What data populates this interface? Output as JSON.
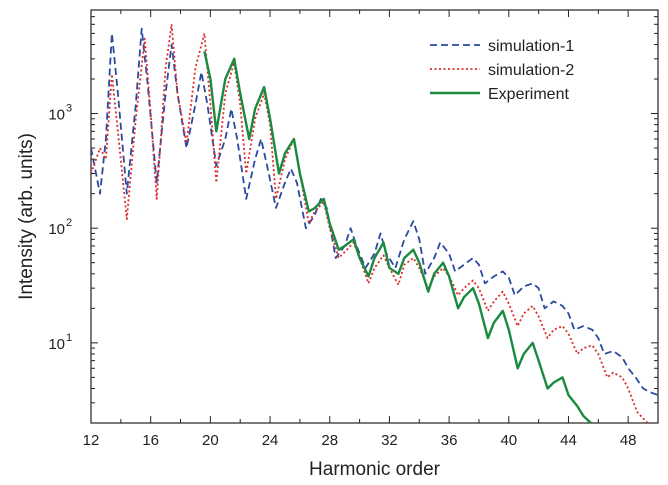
{
  "chart_data": {
    "type": "line",
    "title": "",
    "xlabel": "Harmonic order",
    "ylabel": "Intensity (arb. units)",
    "xlim": [
      12,
      50
    ],
    "ylim": [
      2,
      8000
    ],
    "yscale": "log",
    "grid": false,
    "legend_position": "top-right",
    "x_ticks": [
      12,
      16,
      20,
      24,
      28,
      32,
      36,
      40,
      44,
      48
    ],
    "y_ticks": [
      {
        "value": 10,
        "label": "10",
        "exp": "1"
      },
      {
        "value": 100,
        "label": "10",
        "exp": "2"
      },
      {
        "value": 1000,
        "label": "10",
        "exp": "3"
      }
    ],
    "series": [
      {
        "name": "simulation-1",
        "color": "#2a4aa0",
        "style": "dashed",
        "points": [
          [
            12,
            500
          ],
          [
            12.6,
            200
          ],
          [
            13.0,
            600
          ],
          [
            13.4,
            5000
          ],
          [
            13.8,
            1500
          ],
          [
            14.4,
            200
          ],
          [
            15.0,
            1200
          ],
          [
            15.4,
            5500
          ],
          [
            15.8,
            1800
          ],
          [
            16.4,
            250
          ],
          [
            17.0,
            1500
          ],
          [
            17.4,
            4000
          ],
          [
            17.8,
            1500
          ],
          [
            18.4,
            500
          ],
          [
            19.0,
            1200
          ],
          [
            19.4,
            2300
          ],
          [
            19.8,
            1200
          ],
          [
            20.4,
            350
          ],
          [
            21.0,
            600
          ],
          [
            21.4,
            1100
          ],
          [
            21.8,
            600
          ],
          [
            22.4,
            180
          ],
          [
            23.0,
            400
          ],
          [
            23.4,
            600
          ],
          [
            23.8,
            350
          ],
          [
            24.4,
            150
          ],
          [
            25.0,
            250
          ],
          [
            25.4,
            330
          ],
          [
            25.8,
            250
          ],
          [
            26.4,
            100
          ],
          [
            27.0,
            130
          ],
          [
            27.4,
            180
          ],
          [
            27.8,
            150
          ],
          [
            28.4,
            55
          ],
          [
            29.0,
            70
          ],
          [
            29.4,
            100
          ],
          [
            29.8,
            70
          ],
          [
            30.4,
            45
          ],
          [
            31.0,
            60
          ],
          [
            31.4,
            90
          ],
          [
            31.8,
            60
          ],
          [
            32.4,
            45
          ],
          [
            33.0,
            80
          ],
          [
            33.6,
            115
          ],
          [
            34.0,
            80
          ],
          [
            34.4,
            40
          ],
          [
            35.0,
            55
          ],
          [
            35.4,
            75
          ],
          [
            36.0,
            60
          ],
          [
            36.4,
            42
          ],
          [
            37.0,
            48
          ],
          [
            37.6,
            55
          ],
          [
            38.0,
            48
          ],
          [
            38.4,
            33
          ],
          [
            39.0,
            38
          ],
          [
            39.6,
            42
          ],
          [
            40.0,
            37
          ],
          [
            40.4,
            26
          ],
          [
            41.0,
            31
          ],
          [
            41.6,
            33
          ],
          [
            42.0,
            30
          ],
          [
            42.4,
            20
          ],
          [
            43.0,
            23
          ],
          [
            43.6,
            21
          ],
          [
            44.0,
            18
          ],
          [
            44.4,
            13
          ],
          [
            45.0,
            14
          ],
          [
            45.6,
            13
          ],
          [
            46.0,
            11
          ],
          [
            46.4,
            8
          ],
          [
            47.0,
            8.5
          ],
          [
            47.6,
            7.5
          ],
          [
            48.0,
            6
          ],
          [
            48.5,
            5
          ],
          [
            49.0,
            4
          ],
          [
            49.5,
            3.7
          ],
          [
            50,
            3.5
          ]
        ]
      },
      {
        "name": "simulation-2",
        "color": "#dd2a2a",
        "style": "dotted",
        "points": [
          [
            12,
            300
          ],
          [
            12.6,
            500
          ],
          [
            13.0,
            400
          ],
          [
            13.4,
            2200
          ],
          [
            13.8,
            700
          ],
          [
            14.4,
            120
          ],
          [
            15.0,
            900
          ],
          [
            15.6,
            4500
          ],
          [
            16.0,
            1000
          ],
          [
            16.4,
            180
          ],
          [
            17.0,
            2500
          ],
          [
            17.4,
            6000
          ],
          [
            17.8,
            1500
          ],
          [
            18.4,
            550
          ],
          [
            19.0,
            2500
          ],
          [
            19.6,
            5000
          ],
          [
            20.0,
            1200
          ],
          [
            20.4,
            250
          ],
          [
            21.0,
            1500
          ],
          [
            21.6,
            2800
          ],
          [
            22.0,
            1200
          ],
          [
            22.4,
            300
          ],
          [
            23.0,
            900
          ],
          [
            23.6,
            1500
          ],
          [
            24.0,
            800
          ],
          [
            24.4,
            180
          ],
          [
            25.0,
            400
          ],
          [
            25.6,
            600
          ],
          [
            26.0,
            300
          ],
          [
            26.6,
            110
          ],
          [
            27.0,
            140
          ],
          [
            27.6,
            170
          ],
          [
            28.0,
            100
          ],
          [
            28.6,
            55
          ],
          [
            29.0,
            62
          ],
          [
            29.6,
            75
          ],
          [
            30.0,
            55
          ],
          [
            30.6,
            33
          ],
          [
            31.0,
            45
          ],
          [
            31.6,
            58
          ],
          [
            32.0,
            45
          ],
          [
            32.6,
            32
          ],
          [
            33.0,
            48
          ],
          [
            33.6,
            55
          ],
          [
            34.0,
            45
          ],
          [
            34.6,
            30
          ],
          [
            35.0,
            38
          ],
          [
            35.6,
            45
          ],
          [
            36.0,
            38
          ],
          [
            36.6,
            26
          ],
          [
            37.0,
            30
          ],
          [
            37.6,
            35
          ],
          [
            38.0,
            30
          ],
          [
            38.6,
            19
          ],
          [
            39.0,
            23
          ],
          [
            39.6,
            28
          ],
          [
            40.0,
            22
          ],
          [
            40.6,
            14
          ],
          [
            41.0,
            18
          ],
          [
            41.6,
            21
          ],
          [
            42.0,
            17
          ],
          [
            42.6,
            11
          ],
          [
            43.0,
            13
          ],
          [
            43.6,
            14
          ],
          [
            44.0,
            12
          ],
          [
            44.6,
            8
          ],
          [
            45.0,
            9
          ],
          [
            45.6,
            9.5
          ],
          [
            46.0,
            8
          ],
          [
            46.6,
            5
          ],
          [
            47.0,
            5.5
          ],
          [
            47.6,
            5
          ],
          [
            48.0,
            4
          ],
          [
            48.6,
            2.5
          ],
          [
            49.0,
            2.2
          ],
          [
            49.3,
            2
          ]
        ]
      },
      {
        "name": "Experiment",
        "color": "#1a8a40",
        "style": "solid",
        "points": [
          [
            19.6,
            3500
          ],
          [
            20.0,
            2000
          ],
          [
            20.4,
            700
          ],
          [
            21.0,
            2000
          ],
          [
            21.6,
            3000
          ],
          [
            22.0,
            1500
          ],
          [
            22.6,
            600
          ],
          [
            23.0,
            1100
          ],
          [
            23.6,
            1700
          ],
          [
            24.0,
            900
          ],
          [
            24.6,
            300
          ],
          [
            25.0,
            450
          ],
          [
            25.6,
            600
          ],
          [
            26.0,
            300
          ],
          [
            26.6,
            140
          ],
          [
            27.0,
            150
          ],
          [
            27.6,
            180
          ],
          [
            28.0,
            110
          ],
          [
            28.6,
            65
          ],
          [
            29.0,
            70
          ],
          [
            29.6,
            80
          ],
          [
            30.0,
            55
          ],
          [
            30.6,
            38
          ],
          [
            31.0,
            55
          ],
          [
            31.6,
            75
          ],
          [
            32.0,
            45
          ],
          [
            32.6,
            40
          ],
          [
            33.0,
            55
          ],
          [
            33.6,
            65
          ],
          [
            34.0,
            50
          ],
          [
            34.6,
            28
          ],
          [
            35.0,
            40
          ],
          [
            35.6,
            50
          ],
          [
            36.0,
            38
          ],
          [
            36.6,
            20
          ],
          [
            37.0,
            25
          ],
          [
            37.6,
            30
          ],
          [
            38.0,
            22
          ],
          [
            38.6,
            11
          ],
          [
            39.0,
            15
          ],
          [
            39.6,
            19
          ],
          [
            40.0,
            13
          ],
          [
            40.6,
            6
          ],
          [
            41.0,
            8
          ],
          [
            41.6,
            10
          ],
          [
            42.0,
            7
          ],
          [
            42.6,
            4
          ],
          [
            43.0,
            4.5
          ],
          [
            43.6,
            5
          ],
          [
            44.0,
            3.5
          ],
          [
            44.6,
            2.8
          ],
          [
            45.0,
            2.3
          ],
          [
            45.5,
            2
          ]
        ]
      }
    ]
  }
}
